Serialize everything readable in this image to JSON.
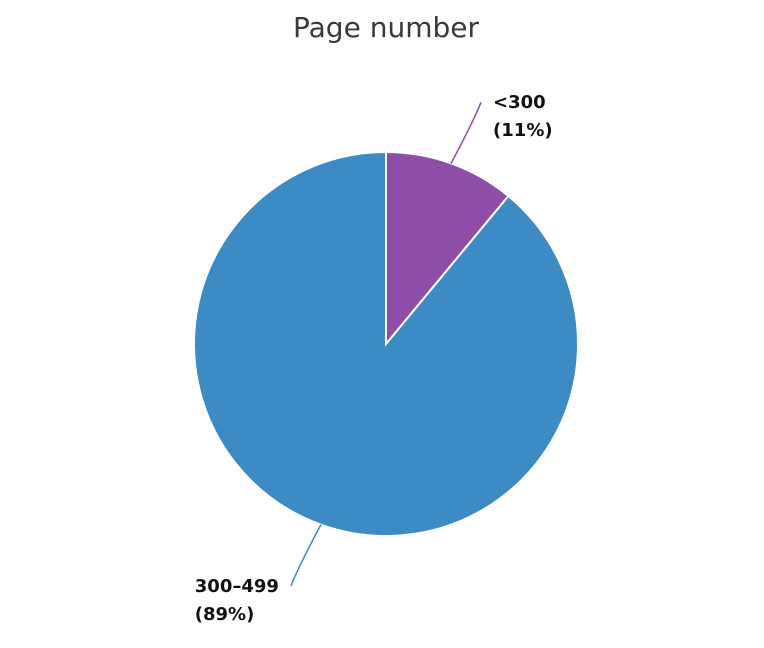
{
  "chart_data": {
    "type": "pie",
    "title": "Page number",
    "categories": [
      "<300",
      "300–499"
    ],
    "values": [
      11,
      89
    ],
    "value_labels": [
      "(11%)",
      "(89%)"
    ],
    "colors": [
      "#8e4ea8",
      "#3d8bc4"
    ]
  }
}
